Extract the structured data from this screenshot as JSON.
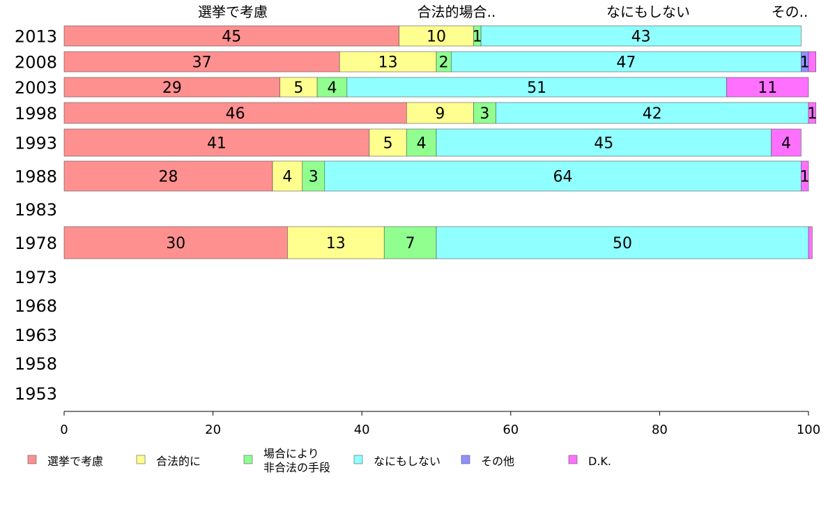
{
  "chart_data": {
    "type": "bar",
    "orientation": "horizontal",
    "stacked": true,
    "title": "",
    "xlabel": "",
    "ylabel": "",
    "xlim": [
      0,
      100
    ],
    "xticks": [
      "0",
      "20",
      "40",
      "60",
      "80",
      "100"
    ],
    "top_labels": [
      "選挙で考慮",
      "合法的場合..",
      "なにもしない",
      "その.."
    ],
    "legend_position": "bottom",
    "legend": [
      "選挙で考慮",
      "合法的に",
      "場合により\n非合法の手段",
      "なにもしない",
      "その他",
      "D.K."
    ],
    "categories": [
      "2013",
      "2008",
      "2003",
      "1998",
      "1993",
      "1988",
      "1983",
      "1978",
      "1973",
      "1968",
      "1963",
      "1958",
      "1953"
    ],
    "series": [
      {
        "name": "選挙で考慮",
        "color": "#ff9090",
        "values": [
          45,
          37,
          29,
          46,
          41,
          28,
          null,
          30,
          null,
          null,
          null,
          null,
          null
        ]
      },
      {
        "name": "合法的に",
        "color": "#ffff90",
        "values": [
          10,
          13,
          5,
          9,
          5,
          4,
          null,
          13,
          null,
          null,
          null,
          null,
          null
        ]
      },
      {
        "name": "場合により非合法の手段",
        "color": "#90ff90",
        "values": [
          1,
          2,
          4,
          3,
          4,
          3,
          null,
          7,
          null,
          null,
          null,
          null,
          null
        ]
      },
      {
        "name": "なにもしない",
        "color": "#90ffff",
        "values": [
          43,
          47,
          51,
          42,
          45,
          64,
          null,
          50,
          null,
          null,
          null,
          null,
          null
        ]
      },
      {
        "name": "その他",
        "color": "#9090ff",
        "values": [
          0,
          1,
          0,
          0,
          0,
          0,
          null,
          0,
          null,
          null,
          null,
          null,
          null
        ]
      },
      {
        "name": "D.K.",
        "color": "#ff70ff",
        "values": [
          0,
          1,
          11,
          1,
          4,
          1,
          null,
          0.5,
          null,
          null,
          null,
          null,
          null
        ]
      }
    ],
    "data_labels": [
      [
        "45",
        "10",
        "1",
        "43",
        "",
        ""
      ],
      [
        "37",
        "13",
        "2",
        "47",
        "1",
        ""
      ],
      [
        "29",
        "5",
        "4",
        "51",
        "",
        "11"
      ],
      [
        "46",
        "9",
        "3",
        "42",
        "",
        "1"
      ],
      [
        "41",
        "5",
        "4",
        "45",
        "",
        "4"
      ],
      [
        "28",
        "4",
        "3",
        "64",
        "",
        "1"
      ],
      [],
      [
        "30",
        "13",
        "7",
        "50",
        "",
        ""
      ],
      [],
      [],
      [],
      [],
      []
    ]
  }
}
